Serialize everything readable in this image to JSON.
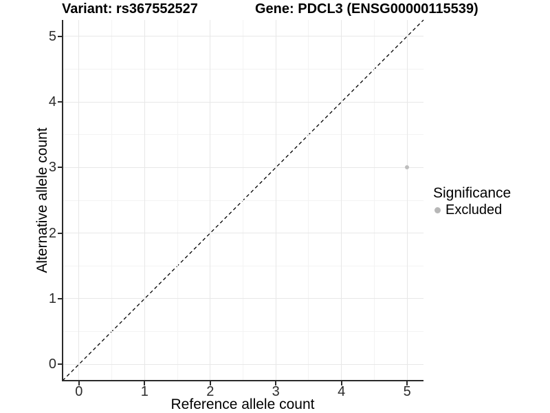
{
  "titles": {
    "variant": "Variant: rs367552527",
    "gene": "Gene: PDCL3 (ENSG00000115539)"
  },
  "axes": {
    "x_label": "Reference allele count",
    "y_label": "Alternative allele count"
  },
  "legend": {
    "title": "Significance",
    "items": [
      {
        "label": "Excluded",
        "color": "#b7b7b7"
      }
    ]
  },
  "colors": {
    "point": "#bebebe",
    "grid_major": "#e7e7e7",
    "grid_minor": "#f3f3f3",
    "axis": "#2a2a2a",
    "reference_line": "#000000",
    "background": "#ffffff"
  },
  "chart_data": {
    "type": "scatter",
    "title_left": "Variant: rs367552527",
    "title_right": "Gene: PDCL3 (ENSG00000115539)",
    "xlabel": "Reference allele count",
    "ylabel": "Alternative allele count",
    "xlim": [
      -0.25,
      5.25
    ],
    "ylim": [
      -0.25,
      5.25
    ],
    "x_ticks": [
      0,
      1,
      2,
      3,
      4,
      5
    ],
    "y_ticks": [
      0,
      1,
      2,
      3,
      4,
      5
    ],
    "x_minor_ticks": [
      0.5,
      1.5,
      2.5,
      3.5,
      4.5
    ],
    "y_minor_ticks": [
      0.5,
      1.5,
      2.5,
      3.5,
      4.5
    ],
    "grid": true,
    "legend_position": "right",
    "series": [
      {
        "name": "Excluded",
        "color": "#bebebe",
        "points": [
          {
            "x": 5,
            "y": 3
          }
        ]
      }
    ],
    "reference_line": {
      "type": "identity",
      "slope": 1,
      "intercept": 0,
      "style": "dashed",
      "color": "#000000"
    }
  }
}
